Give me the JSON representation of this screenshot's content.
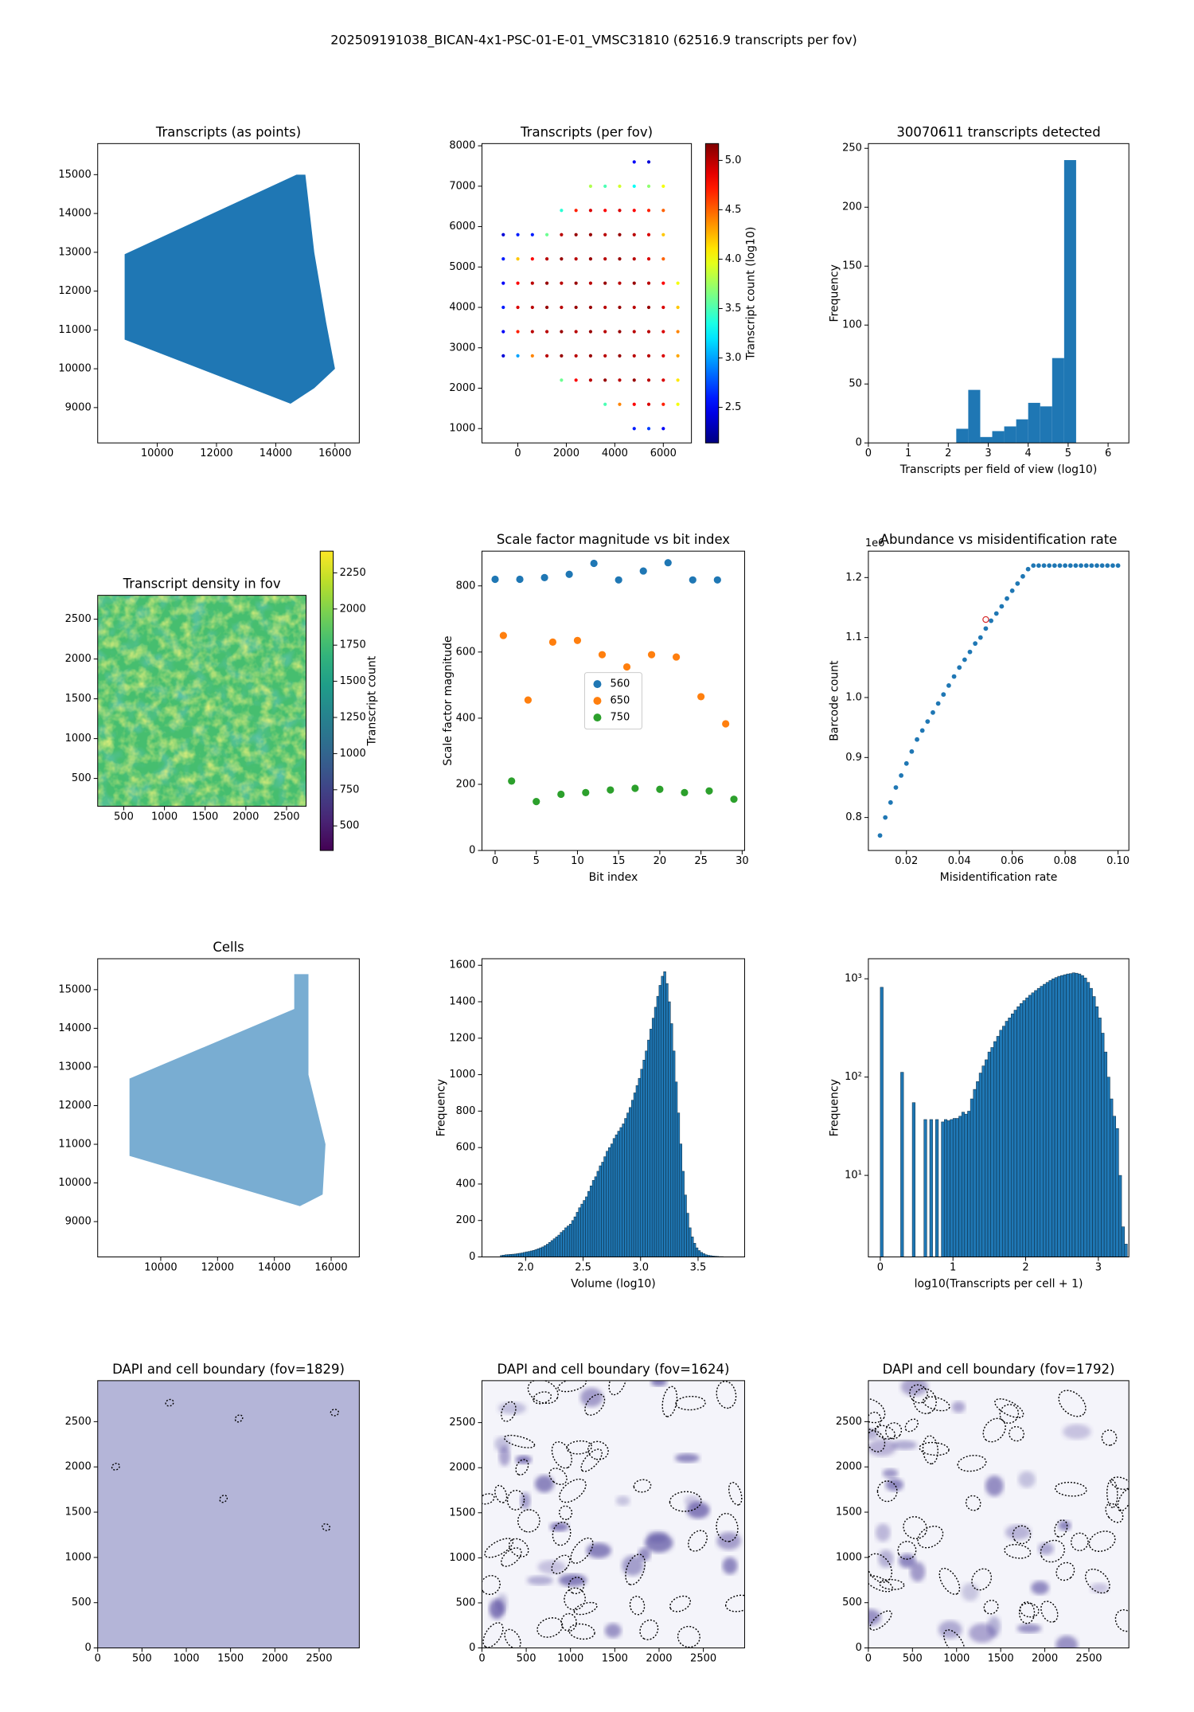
{
  "title": "202509191038_BICAN-4x1-PSC-01-E-01_VMSC31810 (62516.9 transcripts per fov)",
  "chart_data": [
    {
      "type": "area",
      "title": "Transcripts (as points)",
      "color": "#1f77b4",
      "x": [
        8900,
        8900,
        14700,
        15000,
        15300,
        15700,
        16000,
        15300,
        14500
      ],
      "y": [
        10750,
        12950,
        15000,
        15000,
        13000,
        11200,
        10000,
        9500,
        9100
      ],
      "xlim": [
        7990,
        16820
      ],
      "ylim": [
        8090,
        15800
      ],
      "xticks": [
        10000,
        12000,
        14000,
        16000
      ],
      "yticks": [
        9000,
        10000,
        11000,
        12000,
        13000,
        14000,
        15000
      ]
    },
    {
      "type": "scatter",
      "title": "Transcripts (per fov)",
      "colormap": "jet",
      "x": [
        4800,
        5400,
        3000,
        3600,
        4200,
        4800,
        5400,
        6000,
        1800,
        2400,
        3000,
        3600,
        4200,
        4800,
        5400,
        6000,
        -600,
        0,
        600,
        1200,
        1800,
        2400,
        3000,
        3600,
        4200,
        4800,
        5400,
        6000,
        -600,
        0,
        600,
        1200,
        1800,
        2400,
        3000,
        3600,
        4200,
        4800,
        5400,
        6000,
        -600,
        0,
        600,
        1200,
        1800,
        2400,
        3000,
        3600,
        4200,
        4800,
        5400,
        6000,
        6600,
        -600,
        0,
        600,
        1200,
        1800,
        2400,
        3000,
        3600,
        4200,
        4800,
        5400,
        6000,
        6600,
        -600,
        0,
        600,
        1200,
        1800,
        2400,
        3000,
        3600,
        4200,
        4800,
        5400,
        6000,
        6600,
        -600,
        0,
        600,
        1200,
        1800,
        2400,
        3000,
        3600,
        4200,
        4800,
        5400,
        6000,
        6600,
        1800,
        2400,
        3000,
        3600,
        4200,
        4800,
        5400,
        6000,
        6600,
        3600,
        4200,
        4800,
        5400,
        6000,
        6600,
        4800,
        5400,
        6000
      ],
      "y": [
        7600,
        7600,
        7000,
        7000,
        7000,
        7000,
        7000,
        7000,
        6400,
        6400,
        6400,
        6400,
        6400,
        6400,
        6400,
        6400,
        5800,
        5800,
        5800,
        5800,
        5800,
        5800,
        5800,
        5800,
        5800,
        5800,
        5800,
        5800,
        5200,
        5200,
        5200,
        5200,
        5200,
        5200,
        5200,
        5200,
        5200,
        5200,
        5200,
        5200,
        4600,
        4600,
        4600,
        4600,
        4600,
        4600,
        4600,
        4600,
        4600,
        4600,
        4600,
        4600,
        4600,
        4000,
        4000,
        4000,
        4000,
        4000,
        4000,
        4000,
        4000,
        4000,
        4000,
        4000,
        4000,
        4000,
        3400,
        3400,
        3400,
        3400,
        3400,
        3400,
        3400,
        3400,
        3400,
        3400,
        3400,
        3400,
        3400,
        2800,
        2800,
        2800,
        2800,
        2800,
        2800,
        2800,
        2800,
        2800,
        2800,
        2800,
        2800,
        2800,
        2200,
        2200,
        2200,
        2200,
        2200,
        2200,
        2200,
        2200,
        2200,
        1600,
        1600,
        1600,
        1600,
        1600,
        1600,
        1000,
        1000,
        1000
      ],
      "values": [
        2.5,
        2.4,
        3.8,
        3.5,
        3.9,
        3.3,
        3.7,
        4.0,
        3.4,
        4.7,
        4.9,
        4.8,
        4.9,
        4.8,
        4.7,
        4.5,
        2.4,
        2.6,
        2.6,
        3.6,
        5.0,
        5.1,
        5.1,
        5.0,
        5.1,
        5.0,
        4.9,
        4.2,
        2.6,
        4.2,
        4.8,
        5.0,
        5.1,
        5.0,
        5.1,
        5.0,
        5.1,
        5.0,
        4.9,
        4.5,
        2.5,
        4.8,
        5.0,
        5.1,
        5.0,
        5.1,
        5.0,
        5.1,
        5.0,
        5.1,
        5.0,
        4.8,
        4.0,
        2.6,
        4.9,
        5.0,
        5.1,
        5.0,
        5.1,
        5.1,
        5.0,
        5.1,
        5.0,
        5.1,
        4.9,
        4.2,
        2.5,
        4.7,
        5.0,
        5.0,
        5.1,
        5.0,
        5.1,
        5.0,
        5.1,
        5.0,
        5.0,
        4.9,
        4.4,
        2.4,
        3.0,
        4.4,
        5.0,
        5.1,
        5.0,
        5.1,
        5.0,
        5.1,
        5.0,
        5.0,
        4.9,
        4.3,
        3.6,
        4.8,
        5.0,
        5.1,
        5.0,
        5.1,
        5.0,
        4.9,
        4.1,
        3.5,
        4.4,
        4.8,
        4.9,
        4.7,
        4.0,
        2.6,
        2.7,
        2.5
      ],
      "clim": [
        2.14,
        5.17
      ],
      "cticks": [
        2.5,
        {
          "value": 3,
          "label": "3.0"
        },
        3.5,
        {
          "value": 4,
          "label": "4.0"
        },
        4.5,
        {
          "value": 5,
          "label": "5.0"
        }
      ],
      "clabel": "Transcript count (log10)",
      "xlim": [
        -1480,
        7160
      ],
      "ylim": [
        645,
        8055
      ],
      "xticks": [
        0,
        2000,
        4000,
        6000
      ],
      "yticks": [
        1000,
        2000,
        3000,
        4000,
        5000,
        6000,
        7000,
        8000
      ]
    },
    {
      "type": "histogram",
      "title": "30070611 transcripts detected",
      "color": "#1f77b4",
      "xlabel": "Transcripts per field of view (log10)",
      "ylabel": "Frequency",
      "bins": [
        2.2,
        2.5,
        2.8,
        3.1,
        3.4,
        3.7,
        4.0,
        4.3,
        4.6,
        4.9,
        5.2
      ],
      "values": [
        12,
        45,
        5,
        10,
        14,
        20,
        34,
        31,
        72,
        240
      ],
      "xlim": [
        0,
        6.52
      ],
      "ylim": [
        0,
        254
      ],
      "xticks": [
        0,
        1,
        2,
        3,
        4,
        5,
        6
      ],
      "yticks": [
        0,
        50,
        100,
        150,
        200,
        250
      ]
    },
    {
      "type": "heatmap",
      "title": "Transcript density in fov",
      "colormap": "viridis",
      "clim": [
        330,
        2400
      ],
      "cticks": [
        500,
        750,
        1000,
        1250,
        1500,
        1750,
        2000,
        2250
      ],
      "clabel": "Transcript count",
      "xlim": [
        180,
        2740
      ],
      "ylim": [
        150,
        2800
      ],
      "xticks": [
        500,
        1000,
        1500,
        2000,
        2500
      ],
      "yticks": [
        500,
        1000,
        1500,
        2000,
        2500
      ]
    },
    {
      "type": "scatter",
      "title": "Scale factor magnitude vs bit index",
      "xlabel": "Bit index",
      "ylabel": "Scale factor magnitude",
      "legend": "center",
      "series": [
        {
          "name": "560",
          "color": "#1f77b4",
          "x": [
            0,
            3,
            6,
            9,
            12,
            15,
            18,
            21,
            24,
            27
          ],
          "values": [
            820,
            820,
            825,
            835,
            868,
            818,
            845,
            870,
            818,
            818
          ]
        },
        {
          "name": "650",
          "color": "#ff7f0e",
          "x": [
            1,
            4,
            7,
            10,
            13,
            16,
            19,
            22,
            25,
            28
          ],
          "values": [
            650,
            455,
            630,
            635,
            592,
            555,
            592,
            585,
            465,
            383
          ]
        },
        {
          "name": "750",
          "color": "#2ca02c",
          "x": [
            2,
            5,
            8,
            11,
            14,
            17,
            20,
            23,
            26,
            29
          ],
          "values": [
            210,
            148,
            170,
            175,
            183,
            188,
            185,
            175,
            180,
            155
          ]
        }
      ],
      "xlim": [
        -1.6,
        30.3
      ],
      "ylim": [
        0,
        905
      ],
      "xticks": [
        0,
        5,
        10,
        15,
        20,
        25,
        30
      ],
      "yticks": [
        0,
        200,
        400,
        600,
        800
      ]
    },
    {
      "type": "scatter",
      "title": "Abundance vs misidentification rate",
      "color": "#1f77b4",
      "xlabel": "Misidentification rate",
      "ylabel": "Barcode count",
      "y_offset_label": "1e6",
      "x": [
        0.01,
        0.012,
        0.014,
        0.016,
        0.018,
        0.02,
        0.022,
        0.024,
        0.026,
        0.028,
        0.03,
        0.032,
        0.034,
        0.036,
        0.038,
        0.04,
        0.042,
        0.044,
        0.046,
        0.048,
        0.05,
        0.052,
        0.054,
        0.056,
        0.058,
        0.06,
        0.062,
        0.064,
        0.066,
        0.068,
        0.07,
        0.072,
        0.074,
        0.076,
        0.078,
        0.08,
        0.082,
        0.084,
        0.086,
        0.088,
        0.09,
        0.092,
        0.094,
        0.096,
        0.098,
        0.1
      ],
      "values": [
        0.77,
        0.8,
        0.825,
        0.85,
        0.87,
        0.89,
        0.91,
        0.93,
        0.945,
        0.96,
        0.975,
        0.99,
        1.005,
        1.02,
        1.035,
        1.05,
        1.063,
        1.076,
        1.09,
        1.1,
        1.115,
        1.128,
        1.14,
        1.152,
        1.165,
        1.178,
        1.19,
        1.202,
        1.214,
        1.22,
        1.22,
        1.22,
        1.22,
        1.22,
        1.22,
        1.22,
        1.22,
        1.22,
        1.22,
        1.22,
        1.22,
        1.22,
        1.22,
        1.22,
        1.22,
        1.22
      ],
      "highlight": {
        "x": 0.05,
        "y": 1.13,
        "color": "#d62728"
      },
      "xlim": [
        0.0056,
        0.1041
      ],
      "ylim": [
        0.745,
        1.244
      ],
      "xticks": [
        0.02,
        0.04,
        0.06,
        0.08,
        {
          "value": 0.1,
          "label": "0.10"
        }
      ],
      "yticks": [
        0.8,
        0.9,
        {
          "value": 1,
          "label": "1.0"
        },
        1.1,
        1.2
      ]
    },
    {
      "type": "area",
      "title": "Cells",
      "color": "#1f77b4",
      "x": [
        8900,
        8900,
        14700,
        14700,
        15200,
        15200,
        15800,
        15700,
        14900
      ],
      "y": [
        10700,
        12700,
        14500,
        15400,
        15400,
        12800,
        11000,
        9700,
        9400
      ],
      "xlim": [
        7780,
        16990
      ],
      "ylim": [
        8086,
        15800
      ],
      "xticks": [
        10000,
        12000,
        14000,
        16000
      ],
      "yticks": [
        9000,
        10000,
        11000,
        12000,
        13000,
        14000,
        15000
      ]
    },
    {
      "type": "histogram",
      "color": "#1f77b4",
      "edgecolor": "#0b2a40",
      "xlabel": "Volume (log10)",
      "ylabel": "Frequency",
      "bins": [
        1.78,
        1.8,
        1.82,
        1.84,
        1.86,
        1.88,
        1.9,
        1.92,
        1.94,
        1.96,
        1.98,
        2,
        2.02,
        2.04,
        2.06,
        2.08,
        2.1,
        2.12,
        2.14,
        2.16,
        2.18,
        2.2,
        2.22,
        2.24,
        2.26,
        2.28,
        2.3,
        2.32,
        2.34,
        2.36,
        2.38,
        2.4,
        2.42,
        2.44,
        2.46,
        2.48,
        2.5,
        2.52,
        2.54,
        2.56,
        2.58,
        2.6,
        2.62,
        2.64,
        2.66,
        2.68,
        2.7,
        2.72,
        2.74,
        2.76,
        2.78,
        2.8,
        2.82,
        2.84,
        2.86,
        2.88,
        2.9,
        2.92,
        2.94,
        2.96,
        2.98,
        3,
        3.02,
        3.04,
        3.06,
        3.08,
        3.1,
        3.12,
        3.14,
        3.16,
        3.18,
        3.2,
        3.22,
        3.24,
        3.26,
        3.28,
        3.3,
        3.32,
        3.34,
        3.36,
        3.38,
        3.4,
        3.42,
        3.44,
        3.46,
        3.48,
        3.5,
        3.52,
        3.54,
        3.56,
        3.58,
        3.6,
        3.62,
        3.64,
        3.66,
        3.68,
        3.7,
        3.72,
        3.74,
        3.76,
        3.78
      ],
      "values": [
        8,
        10,
        12,
        13,
        14,
        15,
        16,
        18,
        20,
        22,
        25,
        28,
        30,
        33,
        36,
        40,
        45,
        50,
        55,
        62,
        70,
        80,
        90,
        100,
        110,
        120,
        135,
        145,
        160,
        170,
        180,
        200,
        220,
        245,
        270,
        290,
        310,
        330,
        360,
        390,
        420,
        440,
        470,
        500,
        520,
        550,
        580,
        600,
        620,
        650,
        670,
        690,
        710,
        730,
        760,
        790,
        820,
        860,
        900,
        940,
        980,
        1030,
        1080,
        1130,
        1190,
        1250,
        1310,
        1370,
        1430,
        1490,
        1540,
        1565,
        1500,
        1400,
        1280,
        1130,
        960,
        790,
        620,
        470,
        340,
        240,
        160,
        110,
        75,
        50,
        35,
        25,
        18,
        12,
        9,
        7,
        5,
        4,
        3,
        2,
        2,
        1,
        1,
        1
      ],
      "xlim": [
        1.62,
        3.905
      ],
      "ylim": [
        0,
        1636
      ],
      "xticks": [
        {
          "value": 2,
          "label": "2.0"
        },
        2.5,
        {
          "value": 3,
          "label": "3.0"
        },
        3.5
      ],
      "yticks": [
        0,
        200,
        400,
        600,
        800,
        1000,
        1200,
        1400,
        1600
      ]
    },
    {
      "type": "histogram",
      "color": "#1f77b4",
      "edgecolor": "#0b2a40",
      "yscale": "log",
      "xlabel": "log10(Transcripts per cell + 1)",
      "ylabel": "Frequency",
      "bins": [
        0,
        0.04,
        0.08,
        0.12,
        0.16,
        0.2,
        0.24,
        0.28,
        0.32,
        0.36,
        0.4,
        0.44,
        0.48,
        0.52,
        0.56,
        0.6,
        0.64,
        0.68,
        0.72,
        0.76,
        0.8,
        0.84,
        0.88,
        0.92,
        0.96,
        1,
        1.04,
        1.08,
        1.12,
        1.16,
        1.2,
        1.24,
        1.28,
        1.32,
        1.36,
        1.4,
        1.44,
        1.48,
        1.52,
        1.56,
        1.6,
        1.64,
        1.68,
        1.72,
        1.76,
        1.8,
        1.84,
        1.88,
        1.92,
        1.96,
        2,
        2.04,
        2.08,
        2.12,
        2.16,
        2.2,
        2.24,
        2.28,
        2.32,
        2.36,
        2.4,
        2.44,
        2.48,
        2.52,
        2.56,
        2.6,
        2.64,
        2.68,
        2.72,
        2.76,
        2.8,
        2.84,
        2.88,
        2.92,
        2.96,
        3,
        3.04,
        3.08,
        3.12,
        3.16,
        3.2,
        3.24,
        3.28,
        3.32,
        3.36,
        3.4
      ],
      "values": [
        820,
        0,
        0,
        0,
        0,
        0,
        0,
        112,
        0,
        0,
        0,
        55,
        0,
        0,
        0,
        37,
        0,
        37,
        0,
        37,
        0,
        35,
        37,
        36,
        37,
        38,
        38,
        40,
        44,
        42,
        45,
        60,
        75,
        90,
        110,
        130,
        150,
        180,
        200,
        230,
        260,
        300,
        330,
        370,
        400,
        440,
        480,
        520,
        560,
        600,
        640,
        680,
        720,
        760,
        800,
        840,
        880,
        920,
        960,
        1000,
        1030,
        1060,
        1080,
        1100,
        1120,
        1130,
        1150,
        1140,
        1120,
        1080,
        1020,
        920,
        800,
        660,
        520,
        400,
        280,
        180,
        100,
        60,
        40,
        30,
        10,
        3,
        2
      ],
      "xlim": [
        -0.164,
        3.42
      ],
      "ylim": [
        1.48,
        1600
      ],
      "xticks": [
        0,
        1,
        2,
        3
      ],
      "yticks": [
        {
          "value": 10,
          "label": "10¹"
        },
        {
          "value": 100,
          "label": "10²"
        },
        {
          "value": 1000,
          "label": "10³"
        }
      ]
    },
    {
      "type": "image",
      "title": "DAPI and cell boundary (fov=1829)",
      "xlim": [
        0,
        2953
      ],
      "ylim": [
        0,
        2953
      ],
      "xticks": [
        0,
        500,
        1000,
        1500,
        2000,
        2500
      ],
      "yticks": [
        0,
        500,
        1000,
        1500,
        2000,
        2500
      ]
    },
    {
      "type": "image",
      "title": "DAPI and cell boundary (fov=1624)",
      "xlim": [
        0,
        2966
      ],
      "ylim": [
        0,
        2966
      ],
      "xticks": [
        0,
        500,
        1000,
        1500,
        2000,
        2500
      ],
      "yticks": [
        0,
        500,
        1000,
        1500,
        2000,
        2500
      ]
    },
    {
      "type": "image",
      "title": "DAPI and cell boundary (fov=1792)",
      "xlim": [
        0,
        2953
      ],
      "ylim": [
        0,
        2953
      ],
      "xticks": [
        0,
        500,
        1000,
        1500,
        2000,
        2500
      ],
      "yticks": [
        0,
        500,
        1000,
        1500,
        2000,
        2500
      ]
    }
  ]
}
